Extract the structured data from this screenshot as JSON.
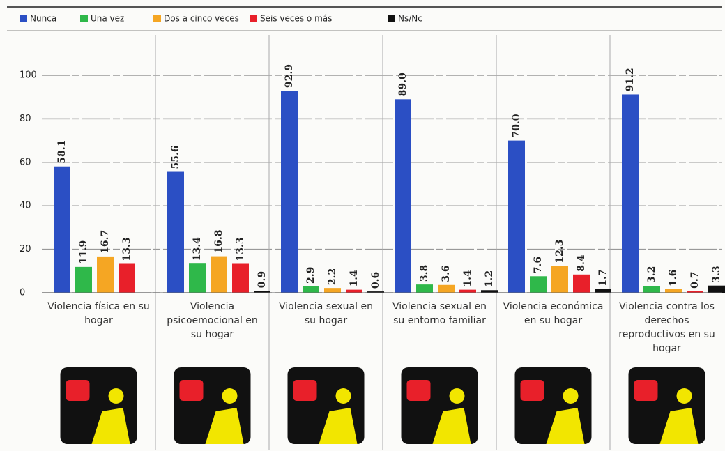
{
  "chart_data": {
    "type": "bar",
    "categories": [
      "Violencia física en su hogar",
      "Violencia psicoemocional en su hogar",
      "Violencia sexual en su hogar",
      "Violencia sexual en su entorno familiar",
      "Violencia económica en su hogar",
      "Violencia contra los derechos reproductivos en su hogar"
    ],
    "series": [
      {
        "name": "Nunca",
        "color": "#2b4fc4",
        "values": [
          58.1,
          55.6,
          92.9,
          89.0,
          70.0,
          91.2
        ],
        "value_labels": [
          "58.1",
          "55.6",
          "92.9",
          "89.0",
          "70.0",
          "91.2"
        ]
      },
      {
        "name": "Una vez",
        "color": "#2fb84a",
        "values": [
          11.9,
          13.4,
          2.9,
          3.8,
          7.6,
          3.2
        ]
      },
      {
        "name": "Dos a cinco veces",
        "color": "#f5a623",
        "values": [
          16.7,
          16.8,
          2.2,
          3.6,
          12.3,
          1.6
        ]
      },
      {
        "name": "Seis veces o más",
        "color": "#e8202a",
        "values": [
          13.3,
          13.3,
          1.4,
          1.4,
          8.4,
          0.7
        ]
      },
      {
        "name": "Ns/Nc",
        "color": "#111111",
        "values": [
          null,
          0.9,
          0.6,
          1.2,
          1.7,
          3.3
        ]
      }
    ],
    "ylim": [
      0,
      115
    ],
    "yticks": [
      0,
      20,
      40,
      60,
      80,
      100
    ],
    "grid": true,
    "legend": "top"
  }
}
